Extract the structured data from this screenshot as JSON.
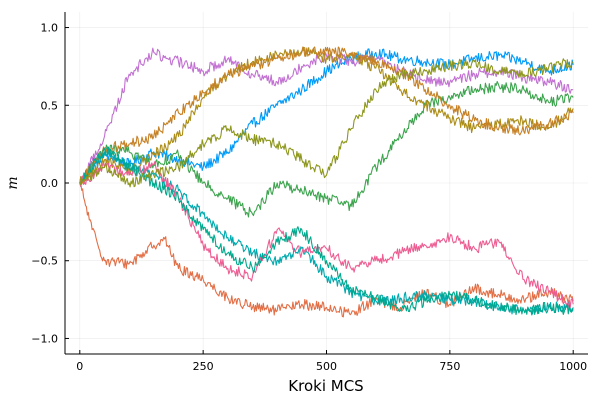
{
  "chart_data": {
    "type": "line",
    "title": "",
    "xlabel": "Kroki MCS",
    "ylabel": "m",
    "xlim": [
      -30,
      1030
    ],
    "ylim": [
      -1.1,
      1.1
    ],
    "xticks": [
      0,
      250,
      500,
      750,
      1000
    ],
    "xtick_labels": [
      "0",
      "250",
      "500",
      "750",
      "1000"
    ],
    "yticks": [
      1.0,
      0.5,
      0.0,
      -0.5,
      -1.0
    ],
    "ytick_labels": [
      "1.0",
      "0.5",
      "0.0",
      "−0.5",
      "−1.0"
    ],
    "grid": true,
    "legend": "none",
    "series": [
      {
        "color": "#009af9",
        "x": [
          0,
          50,
          100,
          150,
          200,
          250,
          300,
          350,
          400,
          450,
          500,
          550,
          600,
          650,
          700,
          750,
          800,
          850,
          900,
          950,
          1000
        ],
        "y": [
          0.0,
          0.18,
          0.12,
          0.2,
          0.15,
          0.1,
          0.2,
          0.38,
          0.5,
          0.6,
          0.72,
          0.8,
          0.84,
          0.8,
          0.78,
          0.76,
          0.8,
          0.82,
          0.78,
          0.72,
          0.76
        ]
      },
      {
        "color": "#e26f46",
        "x": [
          0,
          25,
          50,
          100,
          150,
          170,
          200,
          250,
          300,
          350,
          400,
          450,
          500,
          550,
          600,
          650,
          700,
          750,
          800,
          850,
          900,
          950,
          1000
        ],
        "y": [
          0.0,
          -0.3,
          -0.5,
          -0.52,
          -0.4,
          -0.35,
          -0.55,
          -0.62,
          -0.74,
          -0.8,
          -0.82,
          -0.78,
          -0.8,
          -0.84,
          -0.75,
          -0.8,
          -0.7,
          -0.78,
          -0.68,
          -0.72,
          -0.75,
          -0.7,
          -0.76
        ]
      },
      {
        "color": "#3da44e",
        "x": [
          0,
          50,
          100,
          150,
          200,
          250,
          300,
          350,
          400,
          450,
          500,
          550,
          600,
          650,
          700,
          750,
          800,
          850,
          900,
          950,
          1000
        ],
        "y": [
          0.0,
          0.22,
          0.2,
          0.12,
          0.18,
          0.0,
          -0.1,
          -0.2,
          0.0,
          -0.05,
          -0.1,
          -0.15,
          0.1,
          0.3,
          0.5,
          0.55,
          0.6,
          0.62,
          0.6,
          0.52,
          0.55
        ]
      },
      {
        "color": "#c271d2",
        "x": [
          0,
          50,
          100,
          150,
          175,
          200,
          250,
          300,
          350,
          400,
          450,
          500,
          550,
          600,
          650,
          700,
          750,
          800,
          850,
          900,
          950,
          1000
        ],
        "y": [
          0.0,
          0.3,
          0.7,
          0.84,
          0.8,
          0.78,
          0.72,
          0.8,
          0.7,
          0.65,
          0.75,
          0.82,
          0.78,
          0.8,
          0.72,
          0.66,
          0.65,
          0.7,
          0.72,
          0.68,
          0.65,
          0.6
        ]
      },
      {
        "color": "#ac8d18",
        "x": [
          0,
          50,
          100,
          150,
          200,
          250,
          300,
          350,
          400,
          450,
          500,
          550,
          600,
          650,
          700,
          750,
          800,
          850,
          900,
          950,
          1000
        ],
        "y": [
          0.0,
          0.15,
          0.08,
          0.18,
          0.3,
          0.55,
          0.7,
          0.78,
          0.82,
          0.85,
          0.8,
          0.82,
          0.74,
          0.6,
          0.5,
          0.42,
          0.35,
          0.38,
          0.4,
          0.35,
          0.48
        ]
      },
      {
        "color": "#00a9ad",
        "x": [
          0,
          50,
          100,
          150,
          200,
          250,
          300,
          350,
          400,
          450,
          500,
          550,
          600,
          650,
          700,
          750,
          800,
          850,
          900,
          950,
          1000
        ],
        "y": [
          0.0,
          0.2,
          0.1,
          0.05,
          -0.05,
          -0.2,
          -0.35,
          -0.45,
          -0.5,
          -0.42,
          -0.6,
          -0.7,
          -0.76,
          -0.74,
          -0.72,
          -0.75,
          -0.76,
          -0.8,
          -0.82,
          -0.8,
          -0.8
        ]
      },
      {
        "color": "#ed5e93",
        "x": [
          0,
          50,
          100,
          150,
          200,
          250,
          300,
          350,
          400,
          450,
          500,
          550,
          600,
          650,
          700,
          750,
          800,
          850,
          900,
          950,
          1000
        ],
        "y": [
          0.0,
          0.1,
          0.05,
          0.12,
          -0.1,
          -0.4,
          -0.55,
          -0.6,
          -0.3,
          -0.45,
          -0.42,
          -0.55,
          -0.5,
          -0.45,
          -0.4,
          -0.35,
          -0.42,
          -0.38,
          -0.62,
          -0.7,
          -0.78
        ]
      },
      {
        "color": "#c68125",
        "x": [
          0,
          50,
          100,
          150,
          200,
          250,
          300,
          350,
          400,
          450,
          500,
          550,
          600,
          650,
          700,
          750,
          800,
          850,
          900,
          950,
          1000
        ],
        "y": [
          0.0,
          0.22,
          0.25,
          0.3,
          0.45,
          0.58,
          0.7,
          0.75,
          0.8,
          0.84,
          0.85,
          0.83,
          0.78,
          0.72,
          0.6,
          0.5,
          0.4,
          0.36,
          0.33,
          0.38,
          0.45
        ]
      },
      {
        "color": "#00a98d",
        "x": [
          0,
          50,
          100,
          150,
          200,
          250,
          300,
          350,
          400,
          450,
          500,
          550,
          600,
          650,
          700,
          750,
          800,
          850,
          900,
          950,
          1000
        ],
        "y": [
          0.0,
          0.22,
          0.1,
          0.0,
          -0.1,
          -0.3,
          -0.45,
          -0.55,
          -0.38,
          -0.3,
          -0.5,
          -0.68,
          -0.74,
          -0.82,
          -0.76,
          -0.72,
          -0.75,
          -0.8,
          -0.82,
          -0.8,
          -0.82
        ]
      },
      {
        "color": "#8e971d",
        "x": [
          0,
          50,
          100,
          150,
          200,
          250,
          300,
          350,
          400,
          450,
          500,
          550,
          600,
          650,
          700,
          750,
          800,
          850,
          900,
          950,
          1000
        ],
        "y": [
          0.0,
          0.1,
          0.0,
          0.05,
          0.1,
          0.25,
          0.35,
          0.28,
          0.25,
          0.15,
          0.05,
          0.35,
          0.6,
          0.7,
          0.72,
          0.75,
          0.78,
          0.72,
          0.7,
          0.74,
          0.78
        ]
      }
    ]
  }
}
